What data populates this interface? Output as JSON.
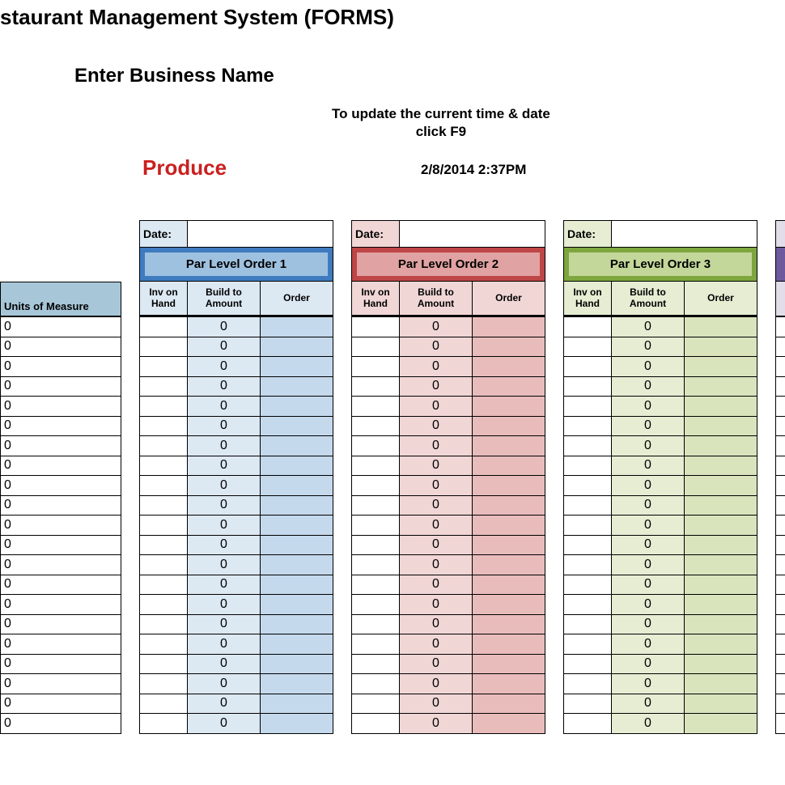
{
  "header": {
    "page_title": "staurant Management System (FORMS)",
    "business_name_label": "Enter Business Name",
    "update_hint_line1": "To update the current time & date",
    "update_hint_line2": "click F9",
    "category_label": "Produce",
    "category_color": "#c9201f",
    "timestamp": "2/8/2014 2:37PM"
  },
  "row_count": 21,
  "left_column": {
    "header": "Units of Measure",
    "header_bg": "#a7c7d8",
    "default_cell_value": "0"
  },
  "column_labels": {
    "date": "Date:",
    "inv_on_hand": "Inv on Hand",
    "build_to_amount": "Build to Amount",
    "order": "Order"
  },
  "blocks": [
    {
      "title": "Par Level Order 1",
      "date_bg": "#dce8f2",
      "header_bg": "#3f7bbf",
      "inner_bg": "#9ec1e0",
      "sub_bg": "#dce8f2",
      "build_bg": "#dce8f2",
      "order_bg": "#c4d9ec",
      "default_build": "0"
    },
    {
      "title": "Par Level Order 2",
      "date_bg": "#f1d6d6",
      "header_bg": "#bf4646",
      "inner_bg": "#e0a2a2",
      "sub_bg": "#f1d6d6",
      "build_bg": "#f1d6d6",
      "order_bg": "#e9bcbc",
      "default_build": "0"
    },
    {
      "title": "Par Level Order 3",
      "date_bg": "#e6edd3",
      "header_bg": "#7ea63e",
      "inner_bg": "#c3d79a",
      "sub_bg": "#e6edd3",
      "build_bg": "#e6edd3",
      "order_bg": "#d9e4bd",
      "default_build": "0"
    }
  ],
  "partial_block": {
    "date_bg": "#e2dde9",
    "header_bg": "#6d5a9c",
    "sub_bg": "#e2dde9",
    "row_bg": "#ffffff"
  }
}
